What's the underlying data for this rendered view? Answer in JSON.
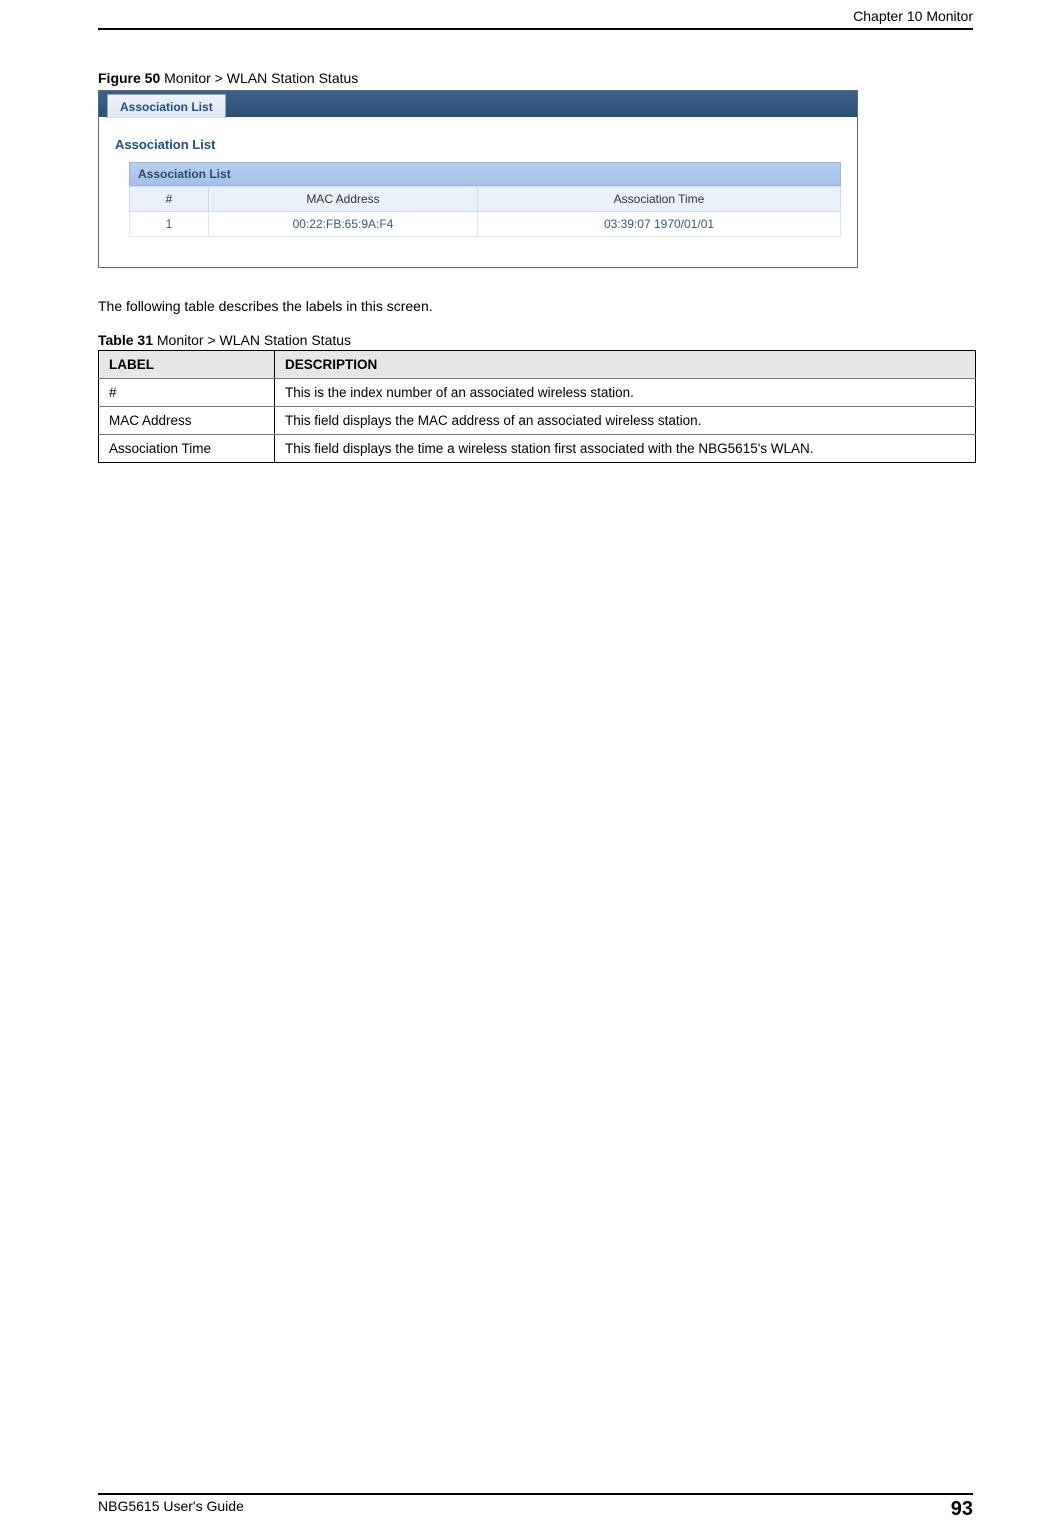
{
  "header": {
    "chapter": "Chapter 10 Monitor"
  },
  "figure": {
    "label_bold": "Figure 50",
    "label_rest": "   Monitor > WLAN Station Status"
  },
  "screenshot": {
    "tab_label": "Association List",
    "section_title": "Association List",
    "panel_title": "Association List",
    "columns": {
      "num": "#",
      "mac": "MAC Address",
      "time": "Association Time"
    },
    "row": {
      "num": "1",
      "mac": "00:22:FB:65:9A:F4",
      "time": "03:39:07 1970/01/01"
    }
  },
  "body_text": "The following table describes the labels in this screen.",
  "table": {
    "label_bold": "Table 31",
    "label_rest": "   Monitor > WLAN Station Status",
    "header_label": "LABEL",
    "header_desc": "DESCRIPTION",
    "rows": [
      {
        "label": "#",
        "desc": "This is the index number of an associated wireless station."
      },
      {
        "label": "MAC Address",
        "desc": "This field displays the MAC address of an associated wireless station."
      },
      {
        "label": "Association Time",
        "desc": "This field displays the time a wireless station first associated with the NBG5615's WLAN."
      }
    ]
  },
  "footer": {
    "guide": "NBG5615 User's Guide",
    "page": "93"
  }
}
